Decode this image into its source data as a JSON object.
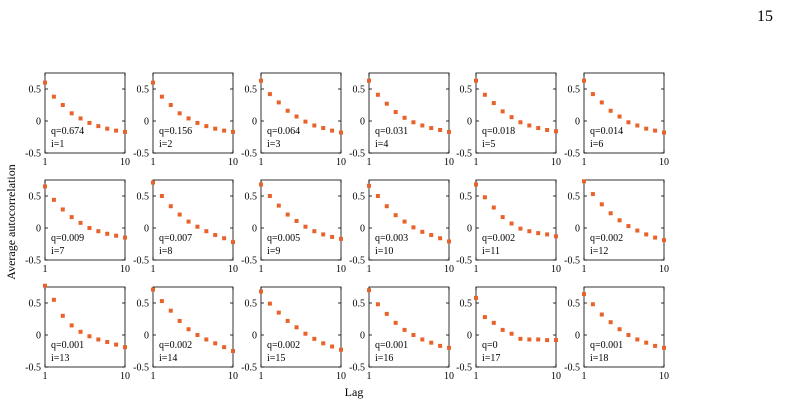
{
  "page_number": "15",
  "figure": {
    "ylabel": "Average autocorrelation",
    "xlabel": "Lag",
    "marker_color": "#E8622A"
  },
  "chart_data": {
    "type": "scatter",
    "layout": {
      "rows": 3,
      "cols": 6
    },
    "xlim": [
      1,
      10
    ],
    "ylim": [
      -0.5,
      0.75
    ],
    "xticks": [
      "1",
      "10"
    ],
    "yticks": [
      "0.5",
      "0",
      "-0.5"
    ],
    "grid": false,
    "x": [
      1,
      2,
      3,
      4,
      5,
      6,
      7,
      8,
      9,
      10
    ],
    "panels": [
      {
        "q": "q=0.674",
        "i": "i=1",
        "values": [
          0.6,
          0.38,
          0.25,
          0.12,
          0.04,
          -0.03,
          -0.08,
          -0.12,
          -0.15,
          -0.17
        ]
      },
      {
        "q": "q=0.156",
        "i": "i=2",
        "values": [
          0.6,
          0.38,
          0.25,
          0.12,
          0.04,
          -0.03,
          -0.08,
          -0.12,
          -0.15,
          -0.17
        ]
      },
      {
        "q": "q=0.064",
        "i": "i=3",
        "values": [
          0.63,
          0.42,
          0.29,
          0.16,
          0.07,
          -0.01,
          -0.07,
          -0.11,
          -0.15,
          -0.18
        ]
      },
      {
        "q": "q=0.031",
        "i": "i=4",
        "values": [
          0.63,
          0.41,
          0.27,
          0.14,
          0.05,
          -0.02,
          -0.07,
          -0.11,
          -0.14,
          -0.17
        ]
      },
      {
        "q": "q=0.018",
        "i": "i=5",
        "values": [
          0.63,
          0.41,
          0.28,
          0.15,
          0.06,
          -0.02,
          -0.07,
          -0.11,
          -0.14,
          -0.16
        ]
      },
      {
        "q": "q=0.014",
        "i": "i=6",
        "values": [
          0.63,
          0.42,
          0.29,
          0.16,
          0.07,
          -0.02,
          -0.07,
          -0.12,
          -0.15,
          -0.18
        ]
      },
      {
        "q": "q=0.009",
        "i": "i=7",
        "values": [
          0.65,
          0.44,
          0.29,
          0.17,
          0.08,
          0.0,
          -0.05,
          -0.09,
          -0.12,
          -0.15
        ]
      },
      {
        "q": "q=0.007",
        "i": "i=8",
        "values": [
          0.71,
          0.5,
          0.34,
          0.21,
          0.1,
          0.02,
          -0.05,
          -0.11,
          -0.16,
          -0.22
        ]
      },
      {
        "q": "q=0.005",
        "i": "i=9",
        "values": [
          0.68,
          0.5,
          0.35,
          0.21,
          0.11,
          0.02,
          -0.05,
          -0.1,
          -0.14,
          -0.17
        ]
      },
      {
        "q": "q=0.003",
        "i": "i=10",
        "values": [
          0.66,
          0.5,
          0.34,
          0.2,
          0.1,
          0.01,
          -0.06,
          -0.11,
          -0.16,
          -0.21
        ]
      },
      {
        "q": "q=0.002",
        "i": "i=11",
        "values": [
          0.68,
          0.48,
          0.32,
          0.17,
          0.07,
          -0.01,
          -0.05,
          -0.08,
          -0.1,
          -0.13
        ]
      },
      {
        "q": "q=0.002",
        "i": "i=12",
        "values": [
          0.73,
          0.53,
          0.37,
          0.23,
          0.12,
          0.03,
          -0.04,
          -0.1,
          -0.15,
          -0.19
        ]
      },
      {
        "q": "q=0.001",
        "i": "i=13",
        "values": [
          0.77,
          0.55,
          0.3,
          0.15,
          0.05,
          -0.02,
          -0.07,
          -0.11,
          -0.15,
          -0.19
        ]
      },
      {
        "q": "q=0.002",
        "i": "i=14",
        "values": [
          0.71,
          0.53,
          0.38,
          0.22,
          0.09,
          0.0,
          -0.07,
          -0.13,
          -0.19,
          -0.25
        ]
      },
      {
        "q": "q=0.002",
        "i": "i=15",
        "values": [
          0.68,
          0.49,
          0.35,
          0.22,
          0.12,
          0.02,
          -0.06,
          -0.13,
          -0.18,
          -0.23
        ]
      },
      {
        "q": "q=0.001",
        "i": "i=16",
        "values": [
          0.7,
          0.48,
          0.33,
          0.19,
          0.08,
          0.0,
          -0.07,
          -0.12,
          -0.17,
          -0.2
        ]
      },
      {
        "q": "q=0",
        "i": "i=17",
        "values": [
          0.58,
          0.28,
          0.19,
          0.08,
          0.02,
          -0.06,
          -0.07,
          -0.07,
          -0.08,
          -0.08
        ]
      },
      {
        "q": "q=0.001",
        "i": "i=18",
        "values": [
          0.64,
          0.48,
          0.32,
          0.2,
          0.09,
          0.0,
          -0.07,
          -0.12,
          -0.17,
          -0.2
        ]
      }
    ]
  }
}
